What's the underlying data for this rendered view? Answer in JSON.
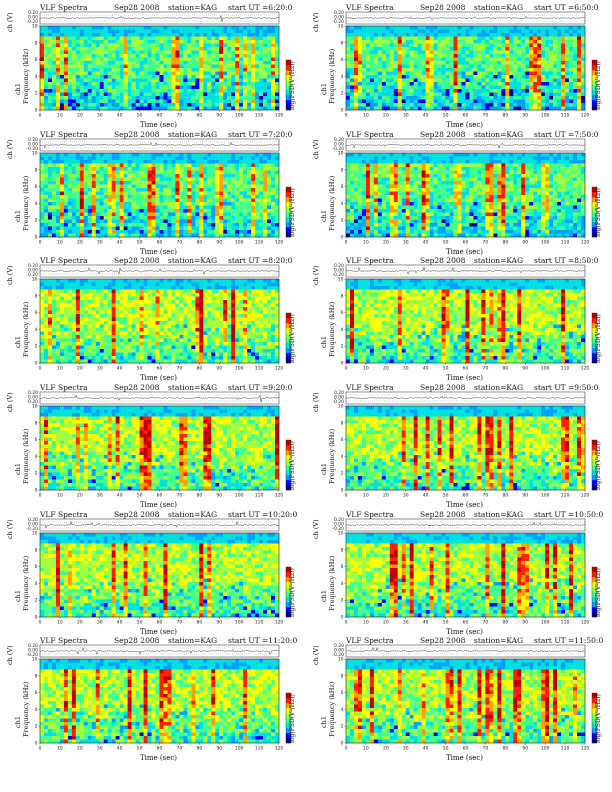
{
  "chart_data": [
    {
      "type": "heatmap",
      "title": "VLF Spectra",
      "date": "Sep28 2008",
      "station": "station=KAG",
      "start": "start UT =6:20:0",
      "xlabel": "Time (sec)",
      "ylabel": "Frequency (kHz)",
      "ylabel_channel": "ch1",
      "top_ylabel": "ch (V)",
      "top_ticks": [
        "0.20",
        "0.00",
        "-0.20"
      ],
      "colorbar_label": "log(PSD(V²/Hz))",
      "xlim": [
        0,
        120
      ],
      "ylim": [
        0,
        10
      ],
      "x_ticks": [
        "0",
        "10",
        "20",
        "30",
        "40",
        "50",
        "60",
        "70",
        "80",
        "90",
        "100",
        "110",
        "120"
      ],
      "y_ticks": [
        "0",
        "2",
        "4",
        "6",
        "8",
        "10"
      ]
    },
    {
      "type": "heatmap",
      "title": "VLF Spectra",
      "date": "Sep28 2008",
      "station": "station=KAG",
      "start": "start UT =6:50:0",
      "xlabel": "Time (sec)",
      "ylabel": "Frequency (kHz)",
      "ylabel_channel": "ch1",
      "top_ylabel": "ch (V)",
      "top_ticks": [
        "0.20",
        "0.00",
        "-0.20"
      ],
      "colorbar_label": "log(PSD(V²/Hz))",
      "xlim": [
        0,
        120
      ],
      "ylim": [
        0,
        10
      ],
      "x_ticks": [
        "0",
        "10",
        "20",
        "30",
        "40",
        "50",
        "60",
        "70",
        "80",
        "90",
        "100",
        "110",
        "120"
      ],
      "y_ticks": [
        "0",
        "2",
        "4",
        "6",
        "8",
        "10"
      ]
    },
    {
      "type": "heatmap",
      "title": "VLF Spectra",
      "date": "Sep28 2008",
      "station": "station=KAG",
      "start": "start UT =7:20:0",
      "xlabel": "Time (sec)",
      "ylabel": "Frequency (kHz)",
      "ylabel_channel": "ch1",
      "top_ylabel": "ch (V)",
      "top_ticks": [
        "0.20",
        "0.00",
        "-0.20"
      ],
      "colorbar_label": "log(PSD(V²/Hz))",
      "xlim": [
        0,
        120
      ],
      "ylim": [
        0,
        10
      ],
      "x_ticks": [
        "0",
        "10",
        "20",
        "30",
        "40",
        "50",
        "60",
        "70",
        "80",
        "90",
        "100",
        "110",
        "120"
      ],
      "y_ticks": [
        "0",
        "2",
        "4",
        "6",
        "8",
        "10"
      ]
    },
    {
      "type": "heatmap",
      "title": "VLF Spectra",
      "date": "Sep28 2008",
      "station": "station=KAG",
      "start": "start UT =7:50:0",
      "xlabel": "Time (sec)",
      "ylabel": "Frequency (kHz)",
      "ylabel_channel": "ch1",
      "top_ylabel": "ch (V)",
      "top_ticks": [
        "0.20",
        "0.00",
        "-0.20"
      ],
      "colorbar_label": "log(PSD(V²/Hz))",
      "xlim": [
        0,
        120
      ],
      "ylim": [
        0,
        10
      ],
      "x_ticks": [
        "0",
        "10",
        "20",
        "30",
        "40",
        "50",
        "60",
        "70",
        "80",
        "90",
        "100",
        "110",
        "120"
      ],
      "y_ticks": [
        "0",
        "2",
        "4",
        "6",
        "8",
        "10"
      ]
    },
    {
      "type": "heatmap",
      "title": "VLF Spectra",
      "date": "Sep28 2008",
      "station": "station=KAG",
      "start": "start UT =8:20:0",
      "xlabel": "Time (sec)",
      "ylabel": "Frequency (kHz)",
      "ylabel_channel": "ch1",
      "top_ylabel": "ch (V)",
      "top_ticks": [
        "0.20",
        "0.00",
        "-0.20"
      ],
      "colorbar_label": "log(PSD(V²/Hz))",
      "xlim": [
        0,
        120
      ],
      "ylim": [
        0,
        10
      ],
      "x_ticks": [
        "0",
        "10",
        "20",
        "30",
        "40",
        "50",
        "60",
        "70",
        "80",
        "90",
        "100",
        "110",
        "120"
      ],
      "y_ticks": [
        "0",
        "2",
        "4",
        "6",
        "8",
        "10"
      ]
    },
    {
      "type": "heatmap",
      "title": "VLF Spectra",
      "date": "Sep28 2008",
      "station": "station=KAG",
      "start": "start UT =8:50:0",
      "xlabel": "Time (sec)",
      "ylabel": "Frequency (kHz)",
      "ylabel_channel": "ch1",
      "top_ylabel": "ch (V)",
      "top_ticks": [
        "0.20",
        "0.00",
        "-0.20"
      ],
      "colorbar_label": "log(PSD(V²/Hz))",
      "xlim": [
        0,
        120
      ],
      "ylim": [
        0,
        10
      ],
      "x_ticks": [
        "0",
        "10",
        "20",
        "30",
        "40",
        "50",
        "60",
        "70",
        "80",
        "90",
        "100",
        "110",
        "120"
      ],
      "y_ticks": [
        "0",
        "2",
        "4",
        "6",
        "8",
        "10"
      ]
    },
    {
      "type": "heatmap",
      "title": "VLF Spectra",
      "date": "Sep28 2008",
      "station": "station=KAG",
      "start": "start UT =9:20:0",
      "xlabel": "Time (sec)",
      "ylabel": "Frequency (kHz)",
      "ylabel_channel": "ch1",
      "top_ylabel": "ch (V)",
      "top_ticks": [
        "0.20",
        "0.00",
        "-0.20"
      ],
      "colorbar_label": "log(PSD(V²/Hz))",
      "xlim": [
        0,
        120
      ],
      "ylim": [
        0,
        10
      ],
      "x_ticks": [
        "0",
        "10",
        "20",
        "30",
        "40",
        "50",
        "60",
        "70",
        "80",
        "90",
        "100",
        "110",
        "120"
      ],
      "y_ticks": [
        "0",
        "2",
        "4",
        "6",
        "8",
        "10"
      ]
    },
    {
      "type": "heatmap",
      "title": "VLF Spectra",
      "date": "Sep28 2008",
      "station": "station=KAG",
      "start": "start UT =9:50:0",
      "xlabel": "Time (sec)",
      "ylabel": "Frequency (kHz)",
      "ylabel_channel": "ch1",
      "top_ylabel": "ch (V)",
      "top_ticks": [
        "0.20",
        "0.00",
        "-0.20"
      ],
      "colorbar_label": "log(PSD(V²/Hz))",
      "xlim": [
        0,
        120
      ],
      "ylim": [
        0,
        10
      ],
      "x_ticks": [
        "0",
        "10",
        "20",
        "30",
        "40",
        "50",
        "60",
        "70",
        "80",
        "90",
        "100",
        "110",
        "120"
      ],
      "y_ticks": [
        "0",
        "2",
        "4",
        "6",
        "8",
        "10"
      ]
    },
    {
      "type": "heatmap",
      "title": "VLF Spectra",
      "date": "Sep28 2008",
      "station": "station=KAG",
      "start": "start UT =10:20:0",
      "xlabel": "Time (sec)",
      "ylabel": "Frequency (kHz)",
      "ylabel_channel": "ch1",
      "top_ylabel": "ch (V)",
      "top_ticks": [
        "0.20",
        "0.00",
        "-0.20"
      ],
      "colorbar_label": "log(PSD(V²/Hz))",
      "xlim": [
        0,
        120
      ],
      "ylim": [
        0,
        10
      ],
      "x_ticks": [
        "0",
        "10",
        "20",
        "30",
        "40",
        "50",
        "60",
        "70",
        "80",
        "90",
        "100",
        "110",
        "120"
      ],
      "y_ticks": [
        "0",
        "2",
        "4",
        "6",
        "8",
        "10"
      ]
    },
    {
      "type": "heatmap",
      "title": "VLF Spectra",
      "date": "Sep28 2008",
      "station": "station=KAG",
      "start": "start UT =10:50:0",
      "xlabel": "Time (sec)",
      "ylabel": "Frequency (kHz)",
      "ylabel_channel": "ch1",
      "top_ylabel": "ch (V)",
      "top_ticks": [
        "0.20",
        "0.00",
        "-0.20"
      ],
      "colorbar_label": "log(PSD(V²/Hz))",
      "xlim": [
        0,
        120
      ],
      "ylim": [
        0,
        10
      ],
      "x_ticks": [
        "0",
        "10",
        "20",
        "30",
        "40",
        "50",
        "60",
        "70",
        "80",
        "90",
        "100",
        "110",
        "120"
      ],
      "y_ticks": [
        "0",
        "2",
        "4",
        "6",
        "8",
        "10"
      ]
    },
    {
      "type": "heatmap",
      "title": "VLF Spectra",
      "date": "Sep28 2008",
      "station": "station=KAG",
      "start": "start UT =11:20:0",
      "xlabel": "Time (sec)",
      "ylabel": "Frequency (kHz)",
      "ylabel_channel": "ch1",
      "top_ylabel": "ch (V)",
      "top_ticks": [
        "0.20",
        "0.00",
        "-0.20"
      ],
      "colorbar_label": "log(PSD(V²/Hz))",
      "xlim": [
        0,
        120
      ],
      "ylim": [
        0,
        10
      ],
      "x_ticks": [
        "0",
        "10",
        "20",
        "30",
        "40",
        "50",
        "60",
        "70",
        "80",
        "90",
        "100",
        "110",
        "120"
      ],
      "y_ticks": [
        "0",
        "2",
        "4",
        "6",
        "8",
        "10"
      ]
    },
    {
      "type": "heatmap",
      "title": "VLF Spectra",
      "date": "Sep28 2008",
      "station": "station=KAG",
      "start": "start UT =11:50:0",
      "xlabel": "Time (sec)",
      "ylabel": "Frequency (kHz)",
      "ylabel_channel": "ch1",
      "top_ylabel": "ch (V)",
      "top_ticks": [
        "0.20",
        "0.00",
        "-0.20"
      ],
      "colorbar_label": "log(PSD(V²/Hz))",
      "xlim": [
        0,
        120
      ],
      "ylim": [
        0,
        10
      ],
      "x_ticks": [
        "0",
        "10",
        "20",
        "30",
        "40",
        "50",
        "60",
        "70",
        "80",
        "90",
        "100",
        "110",
        "120"
      ],
      "y_ticks": [
        "0",
        "2",
        "4",
        "6",
        "8",
        "10"
      ]
    }
  ],
  "colors": {
    "spectrogram_scale": [
      "#000080",
      "#0000ff",
      "#00a0ff",
      "#00e0e0",
      "#40ff90",
      "#a0ff40",
      "#ffff00",
      "#ffa000",
      "#ff2000",
      "#c00000"
    ],
    "axis": "#222222"
  }
}
